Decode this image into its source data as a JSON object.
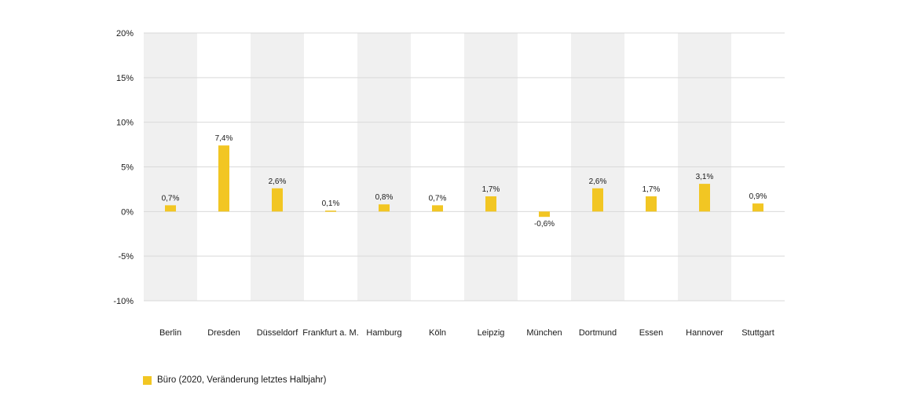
{
  "colors": {
    "bar": "#f2c623",
    "band": "#f0f0f0",
    "grid": "#d9d9d9",
    "text": "#1a1a1a"
  },
  "legend": {
    "label": "Büro (2020, Veränderung letztes Halbjahr)"
  },
  "chart_data": {
    "type": "bar",
    "title": "",
    "xlabel": "",
    "ylabel": "",
    "ylim": [
      -10,
      20
    ],
    "yticks": [
      -10,
      -5,
      0,
      5,
      10,
      15,
      20
    ],
    "ytick_labels": [
      "-10%",
      "-5%",
      "0%",
      "5%",
      "10%",
      "15%",
      "20%"
    ],
    "grid": true,
    "legend_position": "bottom-left",
    "categories": [
      "Berlin",
      "Dresden",
      "Düsseldorf",
      "Frankfurt a. M.",
      "Hamburg",
      "Köln",
      "Leipzig",
      "München",
      "Dortmund",
      "Essen",
      "Hannover",
      "Stuttgart"
    ],
    "series": [
      {
        "name": "Büro (2020, Veränderung letztes Halbjahr)",
        "values": [
          0.7,
          7.4,
          2.6,
          0.1,
          0.8,
          0.7,
          1.7,
          -0.6,
          2.6,
          1.7,
          3.1,
          0.9
        ],
        "data_labels": [
          "0,7%",
          "7,4%",
          "2,6%",
          "0,1%",
          "0,8%",
          "0,7%",
          "1,7%",
          "-0,6%",
          "2,6%",
          "1,7%",
          "3,1%",
          "0,9%"
        ]
      }
    ]
  }
}
